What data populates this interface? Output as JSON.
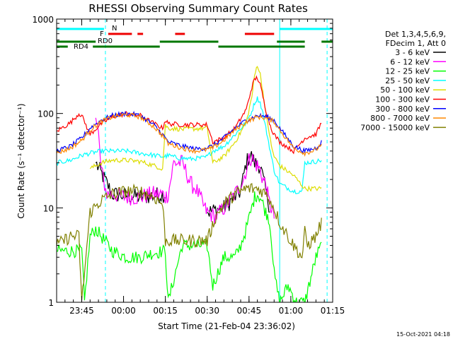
{
  "chart_data": {
    "type": "line",
    "title": "RHESSI Observing Summary Count Rates",
    "xlabel": "Start Time (21-Feb-04 23:36:02)",
    "ylabel": "Count Rate (s⁻¹ detector⁻¹)",
    "y_scale": "log",
    "ylim": [
      1,
      1000
    ],
    "xlim_minutes_since_start": [
      0,
      99
    ],
    "x_ticks": [
      {
        "label": "23:45",
        "t": 9
      },
      {
        "label": "00:00",
        "t": 24
      },
      {
        "label": "00:15",
        "t": 39
      },
      {
        "label": "00:30",
        "t": 54
      },
      {
        "label": "00:45",
        "t": 69
      },
      {
        "label": "01:00",
        "t": 84
      },
      {
        "label": "01:15",
        "t": 99
      }
    ],
    "y_ticks": [
      {
        "label": "1",
        "v": 1
      },
      {
        "label": "10",
        "v": 10
      },
      {
        "label": "100",
        "v": 100
      },
      {
        "label": "1000",
        "v": 1000
      }
    ],
    "legend_header": [
      "Det 1,3,4,5,6,9,",
      "FDecim 1, Att 0"
    ],
    "legend_position": "right",
    "series": [
      {
        "name": "3 - 6 keV",
        "color": "#000000",
        "x": [
          0,
          5,
          8,
          10,
          14,
          20,
          30,
          39,
          40,
          50,
          54,
          60,
          66,
          68,
          69.5,
          71,
          73,
          75,
          76.5
        ],
        "y": [
          null,
          null,
          null,
          null,
          30,
          14,
          13,
          14,
          null,
          null,
          9,
          10,
          15,
          30,
          37,
          30,
          28,
          15,
          10
        ]
      },
      {
        "name": "6 - 12 keV",
        "color": "#ff00ff",
        "x": [
          0,
          8,
          12,
          14,
          15,
          16,
          18,
          20,
          25,
          30,
          34,
          38,
          39,
          40,
          42,
          45,
          47,
          48,
          50,
          53,
          54,
          57,
          60,
          64,
          67,
          69,
          70,
          71,
          72,
          73,
          74,
          75,
          76,
          77,
          78
        ],
        "y": [
          null,
          null,
          null,
          90,
          60,
          25,
          14,
          14,
          13,
          13,
          14,
          14,
          13,
          14,
          30,
          30,
          22,
          18,
          16,
          10,
          9,
          8,
          10,
          14,
          20,
          32,
          35,
          30,
          28,
          25,
          20,
          18,
          12,
          10,
          8
        ]
      },
      {
        "name": "12 - 25 keV",
        "color": "#00ff00",
        "x": [
          0,
          5,
          9,
          10,
          12,
          14,
          16,
          20,
          25,
          30,
          34,
          39,
          40,
          45,
          50,
          54,
          56,
          60,
          64,
          66,
          68,
          70,
          71,
          72,
          73,
          74,
          75,
          76,
          77,
          78,
          80,
          83,
          86,
          89,
          93,
          95
        ],
        "y": [
          3.5,
          3.5,
          3.5,
          1,
          5,
          6,
          5,
          3.5,
          3,
          3,
          3.3,
          3.5,
          1,
          4,
          4,
          4,
          1.5,
          3,
          3,
          4,
          6,
          10,
          13,
          14,
          13,
          11,
          9,
          8,
          5,
          2,
          1,
          1.5,
          1,
          1,
          3,
          4
        ]
      },
      {
        "name": "25 - 50 keV",
        "color": "#00ffff",
        "x": [
          0,
          5,
          9,
          12,
          16,
          20,
          25,
          30,
          35,
          38,
          39,
          40,
          43,
          48,
          53,
          54,
          56,
          60,
          64,
          68,
          70,
          71,
          72,
          73,
          74,
          75,
          76,
          77,
          78,
          80,
          85,
          88,
          89,
          93,
          95
        ],
        "y": [
          30,
          32,
          36,
          38,
          40,
          40,
          40,
          38,
          36,
          35,
          35,
          36,
          34,
          33,
          34,
          35,
          40,
          45,
          60,
          80,
          105,
          130,
          145,
          130,
          100,
          70,
          50,
          35,
          25,
          18,
          15,
          15,
          30,
          31,
          32
        ]
      },
      {
        "name": "50 - 100 keV",
        "color": "#dddd00",
        "x": [
          0,
          5,
          8,
          9,
          12,
          16,
          20,
          25,
          30,
          35,
          38,
          39,
          40,
          45,
          50,
          54,
          56,
          60,
          64,
          68,
          70,
          71,
          72,
          73,
          74,
          75,
          76,
          77,
          78,
          80,
          85,
          89,
          93,
          95
        ],
        "y": [
          null,
          null,
          null,
          null,
          26,
          30,
          32,
          32,
          31,
          28,
          26,
          75,
          70,
          68,
          69,
          70,
          30,
          35,
          50,
          80,
          150,
          250,
          330,
          260,
          170,
          100,
          70,
          45,
          35,
          28,
          22,
          16,
          16,
          16
        ]
      },
      {
        "name": "100 - 300 keV",
        "color": "#ff0000",
        "x": [
          0,
          5,
          8,
          9,
          12,
          16,
          20,
          25,
          30,
          35,
          38,
          39,
          40,
          45,
          50,
          54,
          56,
          60,
          64,
          68,
          70,
          71,
          72,
          73,
          74,
          75,
          76,
          77,
          78,
          80,
          85,
          89,
          93,
          95
        ],
        "y": [
          65,
          80,
          100,
          95,
          60,
          78,
          92,
          100,
          95,
          78,
          70,
          85,
          78,
          76,
          76,
          76,
          50,
          55,
          70,
          110,
          190,
          230,
          240,
          200,
          150,
          110,
          85,
          70,
          60,
          50,
          40,
          55,
          60,
          80
        ]
      },
      {
        "name": "300 - 800 keV",
        "color": "#0000ff",
        "x": [
          0,
          5,
          9,
          12,
          16,
          20,
          25,
          30,
          35,
          38,
          40,
          45,
          50,
          53,
          56,
          60,
          64,
          68,
          72,
          75,
          78,
          80,
          85,
          89,
          93,
          95
        ],
        "y": [
          40,
          45,
          55,
          70,
          85,
          95,
          100,
          95,
          75,
          60,
          50,
          45,
          42,
          43,
          45,
          55,
          70,
          85,
          95,
          93,
          85,
          70,
          45,
          40,
          43,
          50
        ]
      },
      {
        "name": "800 - 7000 keV",
        "color": "#ff8800",
        "x": [
          0,
          5,
          9,
          12,
          16,
          20,
          25,
          30,
          35,
          38,
          40,
          45,
          50,
          53,
          56,
          60,
          64,
          68,
          72,
          75,
          78,
          80,
          85,
          89,
          93,
          95
        ],
        "y": [
          38,
          43,
          52,
          67,
          82,
          92,
          97,
          92,
          72,
          58,
          48,
          43,
          40,
          41,
          43,
          52,
          67,
          82,
          92,
          90,
          82,
          67,
          43,
          38,
          41,
          48
        ]
      },
      {
        "name": "7000 - 15000 keV",
        "color": "#808000",
        "x": [
          0,
          5,
          8,
          9,
          12,
          16,
          20,
          25,
          30,
          35,
          38,
          39,
          40,
          45,
          50,
          54,
          57,
          60,
          64,
          68,
          70,
          72,
          74,
          76,
          78,
          80,
          85,
          88,
          89,
          90,
          93,
          95
        ],
        "y": [
          4,
          5,
          5,
          1,
          9,
          12,
          14,
          15,
          15,
          13,
          11,
          4.5,
          4.5,
          4.5,
          4.5,
          4.5,
          8,
          11,
          14,
          16,
          16,
          16,
          15,
          13,
          10,
          7,
          4,
          3,
          5.5,
          4,
          5,
          7
        ]
      }
    ],
    "state_bars": [
      {
        "name": "N",
        "label": "N",
        "color": "#00ffff",
        "segments": [
          [
            0,
            17
          ],
          [
            80,
            99
          ]
        ]
      },
      {
        "name": "F",
        "label": "F",
        "color": "#ee0000",
        "segments": [
          [
            18.5,
            27
          ],
          [
            29,
            31
          ],
          [
            42.5,
            46
          ],
          [
            67.5,
            78
          ]
        ]
      },
      {
        "name": "RD0",
        "label": "RD0",
        "color": "#007700",
        "segments": [
          [
            0,
            14
          ],
          [
            37,
            58
          ],
          [
            79,
            89
          ],
          [
            95,
            99
          ]
        ]
      },
      {
        "name": "RD4",
        "label": "RD4",
        "color": "#007700",
        "segments": [
          [
            0,
            4
          ],
          [
            13,
            37
          ],
          [
            58,
            89
          ]
        ]
      }
    ],
    "vertical_markers": [
      {
        "t": 0,
        "style": "dashed",
        "color": "#00ffff"
      },
      {
        "t": 17.5,
        "style": "dashed",
        "color": "#00ffff"
      },
      {
        "t": 80,
        "style": "solid",
        "color": "#00ffff"
      },
      {
        "t": 97,
        "style": "dashed",
        "color": "#00ffff"
      }
    ],
    "footer_stamp": "15-Oct-2021 04:18"
  }
}
